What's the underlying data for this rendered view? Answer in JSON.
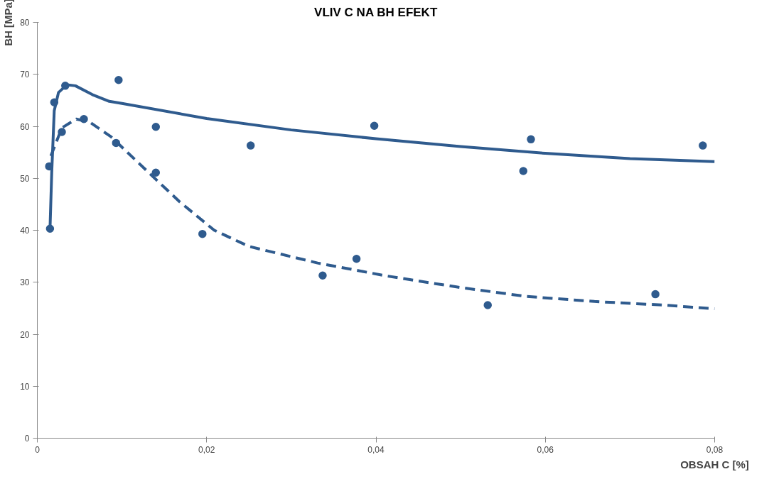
{
  "chart_data": {
    "type": "scatter",
    "title": "VLIV C NA BH EFEKT",
    "xlabel": "OBSAH C [%]",
    "ylabel": "BH [MPa]",
    "xlim": [
      0,
      0.08
    ],
    "ylim": [
      0,
      80
    ],
    "xticks": [
      0,
      {
        "value": 0.02,
        "label": "0,02"
      },
      {
        "value": 0.04,
        "label": "0,04"
      },
      {
        "value": 0.06,
        "label": "0,06"
      },
      {
        "value": 0.08,
        "label": "0,08"
      }
    ],
    "yticks": [
      0,
      10,
      20,
      30,
      40,
      50,
      60,
      70,
      80
    ],
    "grid": false,
    "series": [
      {
        "marker": "circle",
        "color": "#2f5b8e",
        "x": [
          0.0015,
          0.002,
          0.0033,
          0.0096,
          0.014,
          0.0252,
          0.0398,
          0.0574,
          0.0583,
          0.0786
        ],
        "values": [
          40.3,
          64.6,
          67.8,
          68.9,
          59.9,
          56.3,
          60.1,
          51.4,
          57.5,
          56.3
        ]
      },
      {
        "marker": "circle",
        "color": "#2f5b8e",
        "x": [
          0.0014,
          0.0029,
          0.0055,
          0.0093,
          0.014,
          0.0195,
          0.0337,
          0.0377,
          0.0532,
          0.073
        ],
        "values": [
          52.3,
          58.9,
          61.4,
          56.8,
          51.1,
          39.3,
          31.3,
          34.5,
          25.6,
          27.7
        ]
      },
      {
        "type": "line",
        "color": "#2f5b8e",
        "line_style": "solid",
        "x": [
          0.0015,
          0.0017,
          0.002,
          0.0025,
          0.0035,
          0.0045,
          0.0065,
          0.0085,
          0.01,
          0.02,
          0.03,
          0.04,
          0.05,
          0.06,
          0.07,
          0.08
        ],
        "values": [
          40.3,
          51,
          63,
          66.5,
          68,
          67.8,
          66.1,
          64.8,
          64.4,
          61.5,
          59.3,
          57.6,
          56.1,
          54.8,
          53.8,
          53.2
        ]
      },
      {
        "type": "line",
        "color": "#2f5b8e",
        "line_style": "dashed",
        "x": [
          0.0016,
          0.0029,
          0.0046,
          0.0062,
          0.0087,
          0.0127,
          0.0168,
          0.0209,
          0.025,
          0.0331,
          0.0413,
          0.0495,
          0.0576,
          0.0658,
          0.074,
          0.08
        ],
        "values": [
          54.3,
          59.7,
          61.4,
          60.8,
          58,
          51.8,
          45.5,
          40,
          36.9,
          33.7,
          31.2,
          29.1,
          27.3,
          26.3,
          25.6,
          24.9
        ]
      }
    ]
  }
}
